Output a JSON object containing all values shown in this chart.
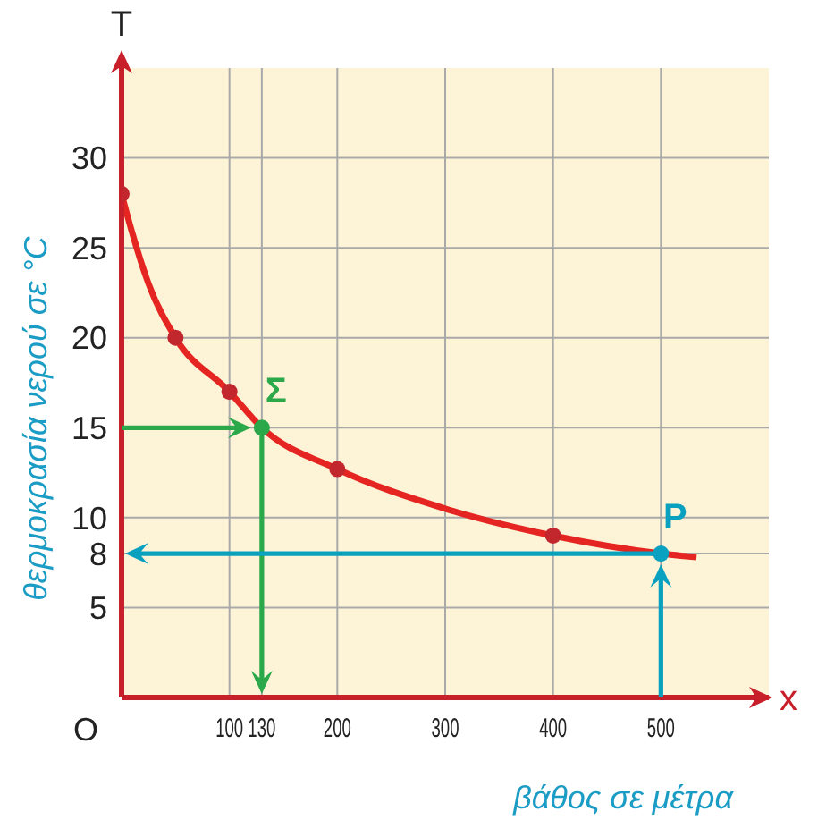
{
  "chart_data": {
    "type": "line",
    "xlabel": "βάθος σε μέτρα",
    "ylabel": "θερμοκρασία νερού σε °C",
    "xlim": [
      0,
      600
    ],
    "ylim": [
      0,
      35
    ],
    "xticks": [
      100,
      130,
      200,
      300,
      400,
      500
    ],
    "yticks": [
      5,
      8,
      10,
      15,
      20,
      25,
      30
    ],
    "grid": true,
    "series": [
      {
        "color": "#e52521",
        "marker": "none",
        "x": [
          0,
          10,
          25,
          50,
          100,
          130,
          200,
          300,
          400,
          500,
          533
        ],
        "values": [
          28,
          25.8,
          23,
          20,
          17,
          15,
          12.7,
          10.5,
          9,
          8,
          7.8
        ]
      },
      {
        "type": "scatter",
        "color": "#c1272d",
        "marker": "circle",
        "x": [
          0,
          50,
          100,
          200,
          400
        ],
        "values": [
          28,
          20,
          17,
          12.7,
          9
        ]
      },
      {
        "type": "scatter",
        "color": "#2aa84a",
        "marker": "circle",
        "x": [
          130
        ],
        "values": [
          15
        ]
      },
      {
        "type": "scatter",
        "color": "#0aa0c0",
        "marker": "circle",
        "x": [
          500
        ],
        "values": [
          8
        ]
      }
    ],
    "annotations": [
      "T",
      "x",
      "O",
      {
        "text": "Σ",
        "x": 130,
        "y": 15
      },
      {
        "text": "P",
        "x": 500,
        "y": 8
      }
    ]
  }
}
